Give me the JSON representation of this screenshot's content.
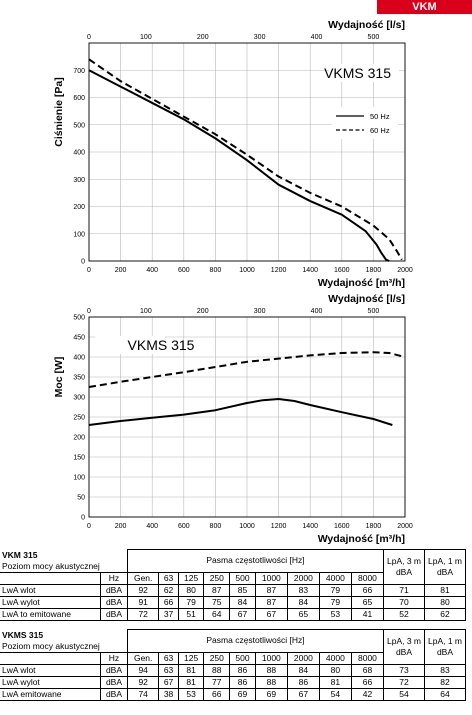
{
  "header": {
    "tag": "VKM"
  },
  "chart_data": [
    {
      "type": "line",
      "title": "VKMS 315",
      "top_axis_label": "Wydajność [l/s]",
      "top_ticks": [
        0,
        100,
        200,
        300,
        400,
        500
      ],
      "xlabel": "Wydajność [m³/h]",
      "ylabel": "Ciśnienie [Pa]",
      "xlim": [
        0,
        2000
      ],
      "ylim": [
        0,
        800
      ],
      "x_ticks": [
        0,
        200,
        400,
        600,
        800,
        1000,
        1200,
        1400,
        1600,
        1800,
        2000
      ],
      "y_ticks": [
        0,
        100,
        200,
        300,
        400,
        500,
        600,
        700
      ],
      "grid": true,
      "legend_position": "right",
      "series": [
        {
          "name": "50 Hz",
          "style": "solid",
          "x": [
            0,
            200,
            400,
            600,
            800,
            1000,
            1200,
            1400,
            1600,
            1750,
            1820,
            1850,
            1880,
            1900
          ],
          "y": [
            700,
            640,
            580,
            520,
            450,
            370,
            280,
            220,
            170,
            110,
            60,
            30,
            5,
            0
          ]
        },
        {
          "name": "60 Hz",
          "style": "dashed",
          "x": [
            0,
            200,
            400,
            600,
            800,
            1000,
            1200,
            1400,
            1600,
            1800,
            1900,
            1950,
            1980
          ],
          "y": [
            740,
            660,
            595,
            530,
            465,
            390,
            310,
            250,
            200,
            130,
            80,
            35,
            5
          ]
        }
      ]
    },
    {
      "type": "line",
      "title": "VKMS 315",
      "top_axis_label": "Wydajność [l/s]",
      "top_ticks": [
        0,
        100,
        200,
        300,
        400,
        500
      ],
      "xlabel": "Wydajność [m³/h]",
      "ylabel": "Moc [W]",
      "xlim": [
        0,
        2000
      ],
      "ylim": [
        0,
        500
      ],
      "x_ticks": [
        0,
        200,
        400,
        600,
        800,
        1000,
        1200,
        1400,
        1600,
        1800,
        2000
      ],
      "y_ticks": [
        0,
        50,
        100,
        150,
        200,
        250,
        300,
        350,
        400,
        450,
        500
      ],
      "grid": true,
      "series": [
        {
          "style": "solid",
          "x": [
            0,
            200,
            400,
            600,
            800,
            1000,
            1100,
            1200,
            1300,
            1400,
            1600,
            1800,
            1920
          ],
          "y": [
            230,
            240,
            248,
            256,
            267,
            285,
            292,
            295,
            290,
            280,
            262,
            245,
            230
          ]
        },
        {
          "style": "dashed",
          "x": [
            0,
            200,
            400,
            600,
            800,
            1000,
            1200,
            1400,
            1600,
            1800,
            1900,
            2000
          ],
          "y": [
            325,
            338,
            350,
            362,
            375,
            388,
            396,
            404,
            410,
            412,
            410,
            400
          ]
        }
      ]
    }
  ],
  "tables": [
    {
      "title": "VKM 315",
      "subtitle": "Poziom mocy akustycznej",
      "bands_label": "Pasma częstotliwości [Hz]",
      "unit_label": "Hz",
      "headers": [
        "Gen.",
        "63",
        "125",
        "250",
        "500",
        "1000",
        "2000",
        "4000",
        "8000"
      ],
      "lpa3": [
        "LpA, 3 m",
        "dBA"
      ],
      "lpa1": [
        "LpA, 1 m",
        "dBA"
      ],
      "rows": [
        {
          "label": "LwA wlot",
          "unit": "dBA",
          "values": [
            "92",
            "62",
            "80",
            "87",
            "85",
            "87",
            "83",
            "79",
            "66"
          ],
          "lpa3": "71",
          "lpa1": "81"
        },
        {
          "label": "LwA wylot",
          "unit": "dBA",
          "values": [
            "91",
            "66",
            "79",
            "75",
            "84",
            "87",
            "84",
            "79",
            "65"
          ],
          "lpa3": "70",
          "lpa1": "80"
        },
        {
          "label": "LwA to  emitowane",
          "unit": "dBA",
          "values": [
            "72",
            "37",
            "51",
            "64",
            "67",
            "67",
            "65",
            "53",
            "41"
          ],
          "lpa3": "52",
          "lpa1": "62"
        }
      ]
    },
    {
      "title": "VKMS 315",
      "subtitle": "Poziom mocy akustycznej",
      "bands_label": "Pasma częstotliwości [Hz]",
      "unit_label": "Hz",
      "headers": [
        "Gen.",
        "63",
        "125",
        "250",
        "500",
        "1000",
        "2000",
        "4000",
        "8000"
      ],
      "lpa3": [
        "LpA, 3 m",
        "dBA"
      ],
      "lpa1": [
        "LpA, 1 m",
        "dBA"
      ],
      "rows": [
        {
          "label": "LwA wlot",
          "unit": "dBA",
          "values": [
            "94",
            "63",
            "81",
            "88",
            "86",
            "88",
            "84",
            "80",
            "68"
          ],
          "lpa3": "73",
          "lpa1": "83"
        },
        {
          "label": "LwA wylot",
          "unit": "dBA",
          "values": [
            "92",
            "67",
            "81",
            "77",
            "86",
            "88",
            "86",
            "81",
            "66"
          ],
          "lpa3": "72",
          "lpa1": "82"
        },
        {
          "label": "LwA emitowane",
          "unit": "dBA",
          "values": [
            "74",
            "38",
            "53",
            "66",
            "69",
            "69",
            "67",
            "54",
            "42"
          ],
          "lpa3": "54",
          "lpa1": "64"
        }
      ]
    }
  ]
}
